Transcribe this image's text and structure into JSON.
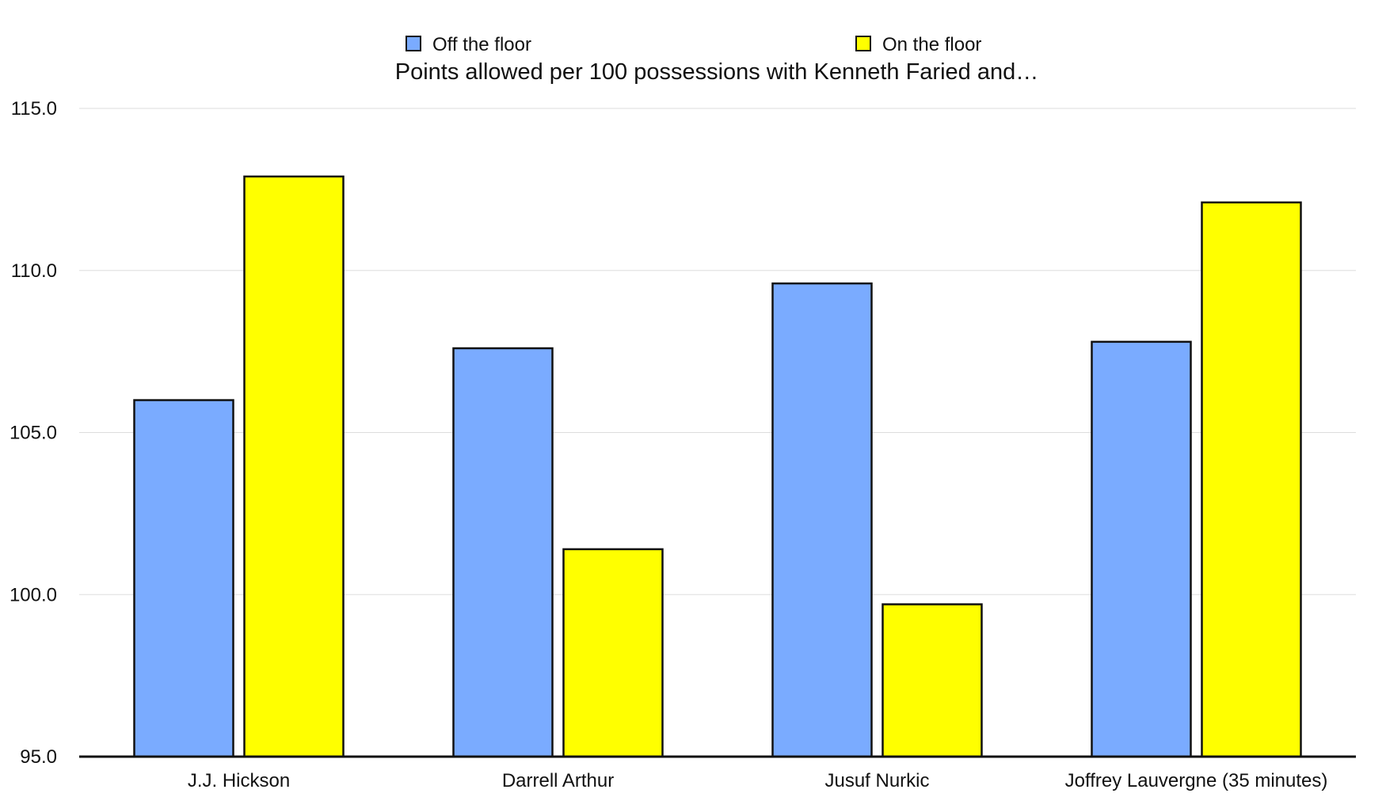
{
  "chart_data": {
    "type": "bar",
    "title": "Points allowed per 100 possessions with Kenneth Faried and…",
    "xlabel": "",
    "ylabel": "",
    "ylim": [
      95,
      115
    ],
    "yticks": [
      "95.0",
      "100.0",
      "105.0",
      "110.0",
      "115.0"
    ],
    "grid": true,
    "legend_position": "top",
    "categories": [
      "J.J. Hickson",
      "Darrell Arthur",
      "Jusuf Nurkic",
      "Joffrey Lauvergne (35 minutes)"
    ],
    "series": [
      {
        "name": "Off the floor",
        "color": "#7aabff",
        "values": [
          106.0,
          107.6,
          109.6,
          107.8
        ]
      },
      {
        "name": "On the floor",
        "color": "#ffff00",
        "values": [
          112.9,
          101.4,
          99.7,
          112.1
        ]
      }
    ]
  }
}
